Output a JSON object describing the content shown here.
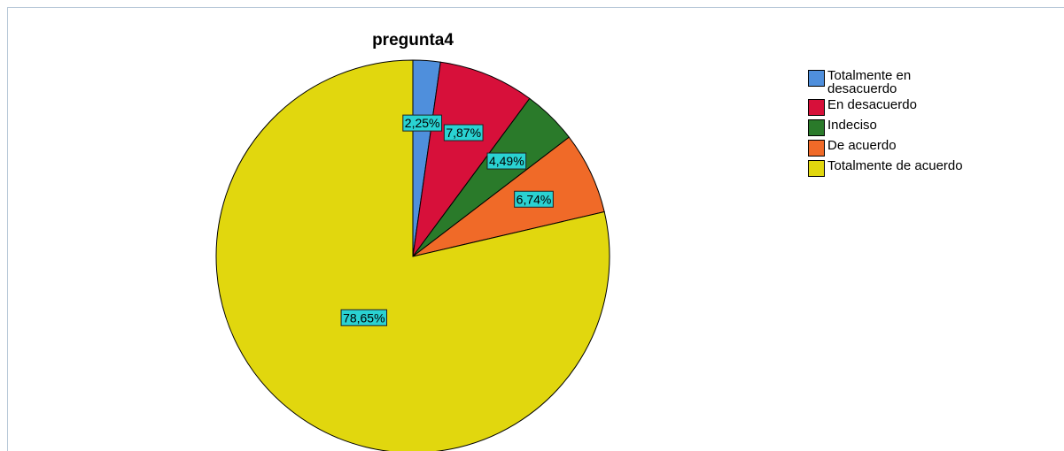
{
  "chart_data": {
    "type": "pie",
    "title": "pregunta4",
    "categories": [
      "Totalmente en desacuerdo",
      "En desacuerdo",
      "Indeciso",
      "De acuerdo",
      "Totalmente de acuerdo"
    ],
    "values": [
      2.25,
      7.87,
      4.49,
      6.74,
      78.65
    ],
    "value_labels": [
      "2,25%",
      "7,87%",
      "4,49%",
      "6,74%",
      "78,65%"
    ],
    "colors": [
      "#4f8fdc",
      "#d7103a",
      "#2a7a2a",
      "#f06a28",
      "#e1d70e"
    ],
    "legend": "right"
  }
}
